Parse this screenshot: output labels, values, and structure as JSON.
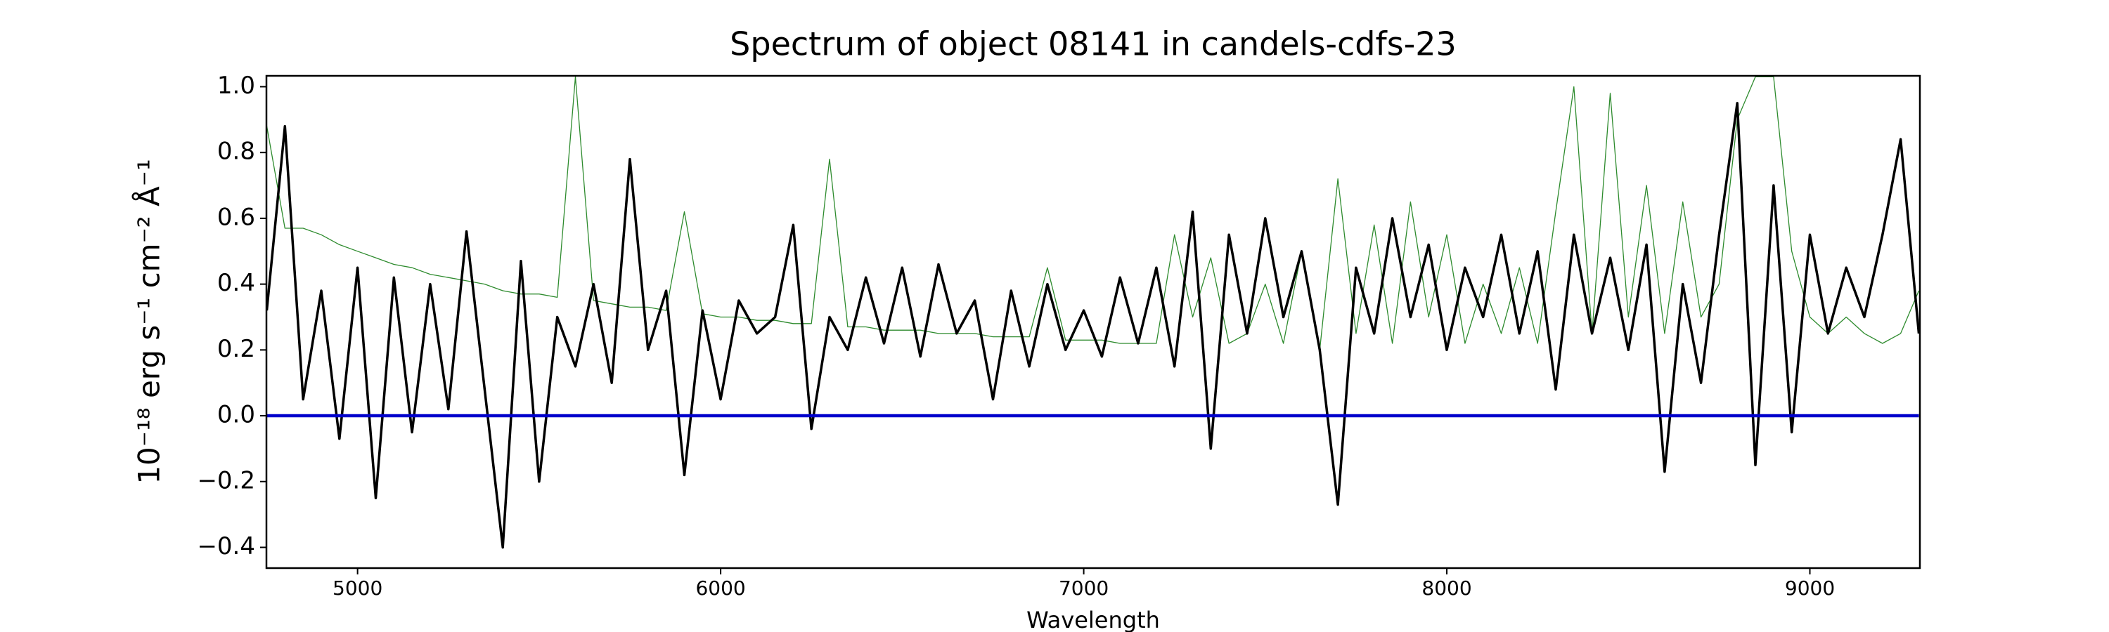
{
  "chart_data": {
    "type": "line",
    "title": "Spectrum of object 08141 in candels-cdfs-23",
    "xlabel": "Wavelength",
    "ylabel": "10⁻¹⁸ erg s⁻¹ cm⁻² Å⁻¹",
    "xlim": [
      4749,
      9303
    ],
    "ylim": [
      -0.463,
      1.033
    ],
    "xticks": [
      5000,
      6000,
      7000,
      8000,
      9000
    ],
    "yticks": [
      {
        "value": -0.4,
        "label": "−0.4"
      },
      {
        "value": -0.2,
        "label": "−0.2"
      },
      {
        "value": 0,
        "label": "0.0"
      },
      0.2,
      0.4,
      0.6,
      0.8,
      {
        "value": 1,
        "label": "1.0"
      }
    ],
    "grid": false,
    "x": [
      4750,
      4800,
      4850,
      4900,
      4950,
      5000,
      5050,
      5100,
      5150,
      5200,
      5250,
      5300,
      5350,
      5400,
      5450,
      5500,
      5550,
      5600,
      5650,
      5700,
      5750,
      5800,
      5850,
      5900,
      5950,
      6000,
      6050,
      6100,
      6150,
      6200,
      6250,
      6300,
      6350,
      6400,
      6450,
      6500,
      6550,
      6600,
      6650,
      6700,
      6750,
      6800,
      6850,
      6900,
      6950,
      7000,
      7050,
      7100,
      7150,
      7200,
      7250,
      7300,
      7350,
      7400,
      7450,
      7500,
      7550,
      7600,
      7650,
      7700,
      7750,
      7800,
      7850,
      7900,
      7950,
      8000,
      8050,
      8100,
      8150,
      8200,
      8250,
      8300,
      8350,
      8400,
      8450,
      8500,
      8550,
      8600,
      8650,
      8700,
      8750,
      8800,
      8850,
      8900,
      8950,
      9000,
      9050,
      9100,
      9150,
      9200,
      9250,
      9300
    ],
    "series": [
      {
        "color": "#2e8b2e",
        "width": 1.3,
        "values": [
          0.88,
          0.57,
          0.57,
          0.55,
          0.52,
          0.5,
          0.48,
          0.46,
          0.45,
          0.43,
          0.42,
          0.41,
          0.4,
          0.38,
          0.37,
          0.37,
          0.36,
          1.03,
          0.35,
          0.34,
          0.33,
          0.33,
          0.32,
          0.62,
          0.31,
          0.3,
          0.3,
          0.29,
          0.29,
          0.28,
          0.28,
          0.78,
          0.27,
          0.27,
          0.26,
          0.26,
          0.26,
          0.25,
          0.25,
          0.25,
          0.24,
          0.24,
          0.24,
          0.45,
          0.23,
          0.23,
          0.23,
          0.22,
          0.22,
          0.22,
          0.55,
          0.3,
          0.48,
          0.22,
          0.25,
          0.4,
          0.22,
          0.5,
          0.2,
          0.72,
          0.25,
          0.58,
          0.22,
          0.65,
          0.3,
          0.55,
          0.22,
          0.4,
          0.25,
          0.45,
          0.22,
          0.62,
          1.0,
          0.25,
          0.98,
          0.3,
          0.7,
          0.25,
          0.65,
          0.3,
          0.4,
          0.9,
          1.03,
          1.03,
          0.5,
          0.3,
          0.25,
          0.3,
          0.25,
          0.22,
          0.25,
          0.38
        ]
      },
      {
        "color": "#000000",
        "width": 3.5,
        "values": [
          0.32,
          0.88,
          0.05,
          0.38,
          -0.07,
          0.45,
          -0.25,
          0.42,
          -0.05,
          0.4,
          0.02,
          0.56,
          0.08,
          -0.4,
          0.47,
          -0.2,
          0.3,
          0.15,
          0.4,
          0.1,
          0.78,
          0.2,
          0.38,
          -0.18,
          0.32,
          0.05,
          0.35,
          0.25,
          0.3,
          0.58,
          -0.04,
          0.3,
          0.2,
          0.42,
          0.22,
          0.45,
          0.18,
          0.46,
          0.25,
          0.35,
          0.05,
          0.38,
          0.15,
          0.4,
          0.2,
          0.32,
          0.18,
          0.42,
          0.22,
          0.45,
          0.15,
          0.62,
          -0.1,
          0.55,
          0.25,
          0.6,
          0.3,
          0.5,
          0.2,
          -0.27,
          0.45,
          0.25,
          0.6,
          0.3,
          0.52,
          0.2,
          0.45,
          0.3,
          0.55,
          0.25,
          0.5,
          0.08,
          0.55,
          0.25,
          0.48,
          0.2,
          0.52,
          -0.17,
          0.4,
          0.1,
          0.55,
          0.95,
          -0.15,
          0.7,
          -0.05,
          0.55,
          0.25,
          0.45,
          0.3,
          0.55,
          0.84,
          0.25
        ]
      },
      {
        "color": "#0000cc",
        "width": 4.5,
        "x": [
          4750,
          9300
        ],
        "values": [
          0,
          0
        ]
      }
    ]
  }
}
